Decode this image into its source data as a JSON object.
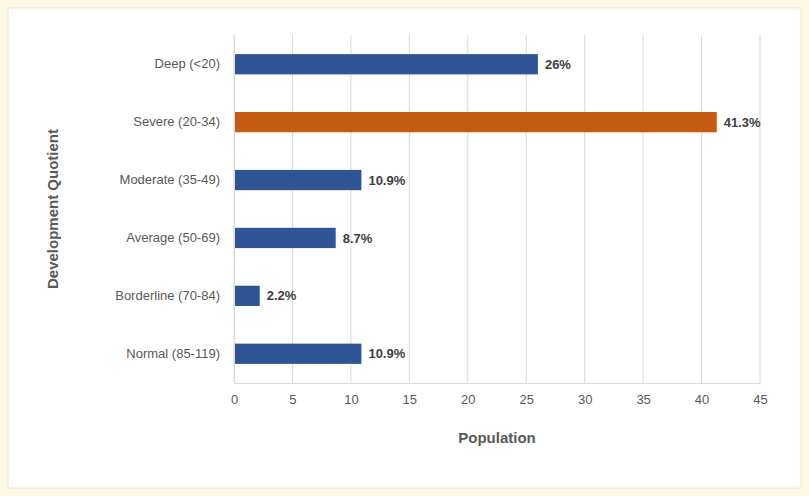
{
  "chart_data": {
    "type": "bar",
    "orientation": "horizontal",
    "categories": [
      "Deep (<20)",
      "Severe (20-34)",
      "Moderate (35-49)",
      "Average (50-69)",
      "Borderline (70-84)",
      "Normal (85-119)"
    ],
    "values": [
      26,
      41.3,
      10.9,
      8.7,
      2.2,
      10.9
    ],
    "value_labels": [
      "26%",
      "41.3%",
      "10.9%",
      "8.7%",
      "2.2%",
      "10.9%"
    ],
    "colors": [
      "#2f5597",
      "#c55a11",
      "#2f5597",
      "#2f5597",
      "#2f5597",
      "#2f5597"
    ],
    "x_label": "Population",
    "y_label": "Development Quotient",
    "xlim": [
      0,
      45
    ],
    "xticks": [
      0,
      5,
      10,
      15,
      20,
      25,
      30,
      35,
      40,
      45
    ],
    "grid": true,
    "data_labels": true
  }
}
